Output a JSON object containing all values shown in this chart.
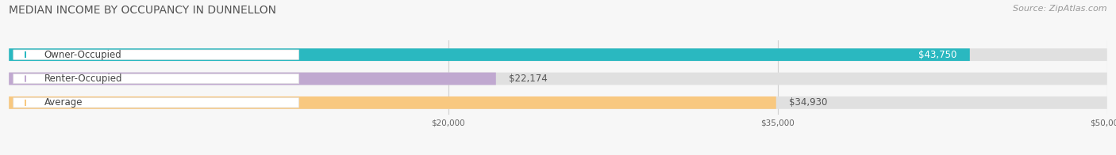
{
  "title": "MEDIAN INCOME BY OCCUPANCY IN DUNNELLON",
  "source": "Source: ZipAtlas.com",
  "categories": [
    "Owner-Occupied",
    "Renter-Occupied",
    "Average"
  ],
  "values": [
    43750,
    22174,
    34930
  ],
  "bar_colors": [
    "#2ab8c0",
    "#c0a8d0",
    "#f8c880"
  ],
  "bar_track_color": "#e0e0e0",
  "value_label_inside": [
    true,
    false,
    false
  ],
  "xlim_max": 50000,
  "xticks": [
    20000,
    35000,
    50000
  ],
  "xtick_labels": [
    "$20,000",
    "$35,000",
    "$50,000"
  ],
  "title_fontsize": 10,
  "source_fontsize": 8,
  "bar_label_fontsize": 8.5,
  "cat_label_fontsize": 8.5,
  "figsize": [
    14.06,
    1.96
  ],
  "dpi": 100,
  "bg_color": "#f7f7f7",
  "grid_color": "#d0d0d0",
  "badge_color": "#ffffff",
  "badge_edge_color": "#e0e0e0"
}
